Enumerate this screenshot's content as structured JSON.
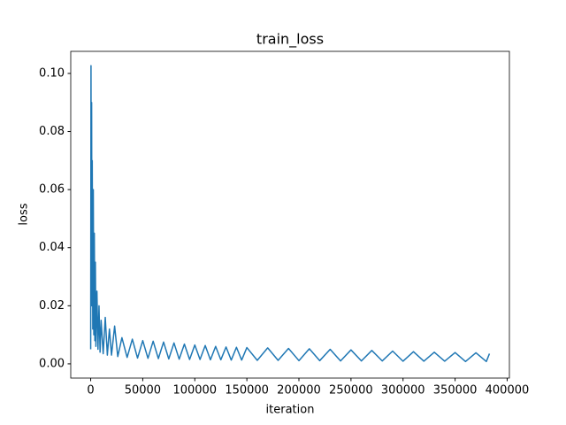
{
  "chart_data": {
    "type": "line",
    "title": "train_loss",
    "xlabel": "iteration",
    "ylabel": "loss",
    "color": "#1f77b4",
    "x": [
      0,
      300,
      600,
      900,
      1200,
      1500,
      2000,
      2500,
      3000,
      3500,
      4000,
      4500,
      5000,
      6000,
      7000,
      8000,
      9000,
      10000,
      12000,
      14000,
      16000,
      18000,
      20000,
      23000,
      26000,
      30000,
      35000,
      40000,
      45000,
      50000,
      55000,
      60000,
      65000,
      70000,
      75000,
      80000,
      85000,
      90000,
      95000,
      100000,
      105000,
      110000,
      115000,
      120000,
      125000,
      130000,
      135000,
      140000,
      145000,
      150000,
      160000,
      170000,
      180000,
      190000,
      200000,
      210000,
      220000,
      230000,
      240000,
      250000,
      260000,
      270000,
      280000,
      290000,
      300000,
      310000,
      320000,
      330000,
      340000,
      350000,
      360000,
      370000,
      380000,
      383000
    ],
    "values": [
      0.005,
      0.1027,
      0.03,
      0.09,
      0.02,
      0.07,
      0.012,
      0.06,
      0.01,
      0.045,
      0.008,
      0.035,
      0.006,
      0.025,
      0.005,
      0.02,
      0.004,
      0.015,
      0.0035,
      0.016,
      0.003,
      0.012,
      0.003,
      0.013,
      0.0025,
      0.009,
      0.0022,
      0.0085,
      0.002,
      0.008,
      0.0019,
      0.0078,
      0.0018,
      0.0075,
      0.0017,
      0.0072,
      0.0016,
      0.0068,
      0.0015,
      0.0065,
      0.0015,
      0.0063,
      0.0014,
      0.006,
      0.0014,
      0.0058,
      0.0013,
      0.0057,
      0.0013,
      0.0056,
      0.0012,
      0.0055,
      0.0012,
      0.0053,
      0.0011,
      0.0052,
      0.0011,
      0.005,
      0.001,
      0.0048,
      0.001,
      0.0046,
      0.001,
      0.0044,
      0.0009,
      0.0042,
      0.0009,
      0.004,
      0.0009,
      0.0039,
      0.0008,
      0.0038,
      0.0008,
      0.0035
    ],
    "xlim": [
      -19150,
      402150
    ],
    "ylim": [
      -0.0049,
      0.1076
    ],
    "xticks": [
      0,
      50000,
      100000,
      150000,
      200000,
      250000,
      300000,
      350000,
      400000
    ],
    "yticks": [
      {
        "value": 0,
        "label": "0.00"
      },
      {
        "value": 0.02,
        "label": "0.02"
      },
      {
        "value": 0.04,
        "label": "0.04"
      },
      {
        "value": 0.06,
        "label": "0.06"
      },
      {
        "value": 0.08,
        "label": "0.08"
      },
      {
        "value": 0.1,
        "label": "0.10"
      }
    ]
  }
}
